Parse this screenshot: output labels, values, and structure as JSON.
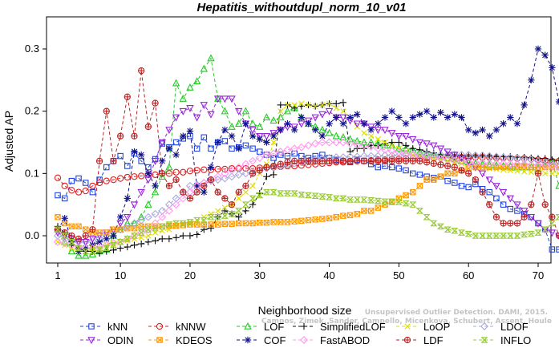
{
  "chart_data": {
    "type": "line",
    "title": "Hepatitis_withoutdupl_norm_10_v01",
    "xlabel": "Neighborhood size",
    "ylabel": "Adjusted AP",
    "xlim": [
      1,
      73
    ],
    "ylim": [
      -0.04,
      0.33
    ],
    "xticks": [
      1,
      10,
      20,
      30,
      40,
      50,
      60,
      70
    ],
    "yticks": [
      0.0,
      0.1,
      0.2,
      0.3
    ],
    "ytick_labels": [
      "0.0",
      "0.1",
      "0.2",
      "0.3"
    ],
    "grid": false,
    "legend_position": "bottom",
    "x": [
      1,
      2,
      3,
      4,
      5,
      6,
      7,
      8,
      9,
      10,
      11,
      12,
      13,
      14,
      15,
      16,
      17,
      18,
      19,
      20,
      21,
      22,
      23,
      24,
      25,
      26,
      27,
      28,
      29,
      30,
      31,
      32,
      33,
      34,
      35,
      36,
      37,
      38,
      39,
      40,
      41,
      42,
      43,
      44,
      45,
      46,
      47,
      48,
      49,
      50,
      51,
      52,
      53,
      54,
      55,
      56,
      57,
      58,
      59,
      60,
      61,
      62,
      63,
      64,
      65,
      66,
      67,
      68,
      69,
      70,
      71,
      72,
      73
    ],
    "series": [
      {
        "name": "kNN",
        "color": "#2244dd",
        "marker": "square",
        "values": [
          0.065,
          0.06,
          0.088,
          0.092,
          0.085,
          0.07,
          0.09,
          0.11,
          0.12,
          0.128,
          0.112,
          0.132,
          0.12,
          0.11,
          0.123,
          0.148,
          0.142,
          0.15,
          0.156,
          0.16,
          0.14,
          0.158,
          0.14,
          0.15,
          0.152,
          0.14,
          0.142,
          0.145,
          0.14,
          0.135,
          0.13,
          0.125,
          0.13,
          0.128,
          0.132,
          0.128,
          0.125,
          0.128,
          0.13,
          0.125,
          0.122,
          0.12,
          0.118,
          0.122,
          0.12,
          0.115,
          0.11,
          0.112,
          0.11,
          0.108,
          0.105,
          0.1,
          0.098,
          0.095,
          0.093,
          0.095,
          0.088,
          0.085,
          0.08,
          0.078,
          0.083,
          0.075,
          0.07,
          0.06,
          0.05,
          0.043,
          0.04,
          0.035,
          0.03,
          0.02,
          0.01,
          -0.022,
          -0.022
        ]
      },
      {
        "name": "kNNW",
        "color": "#dd2222",
        "marker": "circle",
        "values": [
          0.093,
          0.08,
          0.073,
          0.07,
          0.072,
          0.08,
          0.085,
          0.088,
          0.09,
          0.092,
          0.094,
          0.095,
          0.096,
          0.098,
          0.098,
          0.1,
          0.1,
          0.102,
          0.102,
          0.104,
          0.105,
          0.106,
          0.106,
          0.107,
          0.107,
          0.108,
          0.108,
          0.108,
          0.108,
          0.109,
          0.11,
          0.11,
          0.111,
          0.112,
          0.112,
          0.113,
          0.114,
          0.115,
          0.116,
          0.117,
          0.118,
          0.118,
          0.119,
          0.12,
          0.12,
          0.121,
          0.122,
          0.122,
          0.123,
          0.123,
          0.124,
          0.124,
          0.124,
          0.125,
          0.125,
          0.125,
          0.125,
          0.126,
          0.126,
          0.126,
          0.126,
          0.126,
          0.126,
          0.125,
          0.125,
          0.125,
          0.124,
          0.124,
          0.123,
          0.122,
          0.121,
          0.12,
          0.12
        ]
      },
      {
        "name": "LOF",
        "color": "#22cc22",
        "marker": "triangle",
        "values": [
          0.01,
          -0.01,
          -0.025,
          -0.032,
          -0.032,
          -0.03,
          -0.025,
          -0.022,
          0.0,
          0.01,
          0.02,
          0.02,
          0.03,
          0.05,
          0.07,
          0.095,
          0.11,
          0.245,
          0.22,
          0.238,
          0.248,
          0.268,
          0.285,
          0.22,
          0.2,
          0.175,
          0.18,
          0.2,
          0.18,
          0.175,
          0.19,
          0.185,
          0.19,
          0.2,
          0.205,
          0.19,
          0.18,
          0.175,
          0.17,
          0.165,
          0.16,
          0.158,
          0.155,
          0.152,
          0.15,
          0.15,
          0.148,
          0.145,
          0.145,
          0.14,
          0.14,
          0.138,
          0.135,
          0.132,
          0.13,
          0.128,
          0.125,
          0.123,
          0.12,
          0.118,
          0.116,
          0.115,
          0.114,
          0.113,
          0.112,
          0.112,
          0.11,
          0.11,
          0.11,
          0.108,
          0.115,
          0.12,
          0.08
        ]
      },
      {
        "name": "SimplifiedLOF",
        "color": "#111111",
        "marker": "plus",
        "values": [
          0.015,
          0.005,
          -0.015,
          -0.02,
          -0.025,
          -0.025,
          -0.028,
          -0.025,
          -0.023,
          -0.02,
          -0.018,
          -0.015,
          -0.013,
          -0.01,
          -0.008,
          -0.005,
          -0.005,
          -0.003,
          0.0,
          0.0,
          0.002,
          0.01,
          0.012,
          0.03,
          0.04,
          0.035,
          0.03,
          0.04,
          0.05,
          0.068,
          0.095,
          0.098,
          0.21,
          0.21,
          0.205,
          0.208,
          0.21,
          0.208,
          0.21,
          0.212,
          0.212,
          0.214,
          0.135,
          0.14,
          0.14,
          0.145,
          0.145,
          0.148,
          0.15,
          0.15,
          0.145,
          0.14,
          0.138,
          0.135,
          0.133,
          0.13,
          0.13,
          0.128,
          0.128,
          0.128,
          0.128,
          0.128,
          0.128,
          0.127,
          0.127,
          0.127,
          0.126,
          0.126,
          0.125,
          0.124,
          0.124,
          0.122,
          0.121
        ]
      },
      {
        "name": "LoOP",
        "color": "#dddd00",
        "marker": "cross",
        "values": [
          -0.01,
          -0.015,
          -0.02,
          -0.025,
          -0.025,
          -0.02,
          -0.02,
          -0.015,
          -0.012,
          -0.01,
          -0.008,
          -0.005,
          -0.003,
          0.0,
          0.005,
          0.008,
          0.01,
          0.015,
          0.018,
          0.02,
          0.025,
          0.03,
          0.035,
          0.04,
          0.045,
          0.05,
          0.06,
          0.07,
          0.08,
          0.1,
          0.115,
          0.15,
          0.2,
          0.21,
          0.21,
          0.212,
          0.21,
          0.208,
          0.21,
          0.212,
          0.205,
          0.2,
          0.19,
          0.175,
          0.165,
          0.16,
          0.155,
          0.15,
          0.145,
          0.14,
          0.135,
          0.13,
          0.128,
          0.125,
          0.123,
          0.121,
          0.12,
          0.118,
          0.116,
          0.114,
          0.112,
          0.11,
          0.108,
          0.107,
          0.106,
          0.105,
          0.104,
          0.103,
          0.102,
          0.101,
          0.1,
          0.1,
          0.1
        ]
      },
      {
        "name": "LDOF",
        "color": "#aaaadd",
        "marker": "diamond",
        "values": [
          0.0,
          -0.005,
          -0.008,
          -0.01,
          -0.01,
          -0.008,
          -0.005,
          0.0,
          0.005,
          0.01,
          0.015,
          0.02,
          0.025,
          0.03,
          0.035,
          0.04,
          0.05,
          0.06,
          0.07,
          0.08,
          0.082,
          0.085,
          0.088,
          0.09,
          0.092,
          0.095,
          0.098,
          0.1,
          0.102,
          0.105,
          0.108,
          0.11,
          0.112,
          0.114,
          0.116,
          0.118,
          0.12,
          0.122,
          0.124,
          0.125,
          0.126,
          0.126,
          0.127,
          0.127,
          0.128,
          0.128,
          0.128,
          0.129,
          0.129,
          0.129,
          0.13,
          0.13,
          0.13,
          0.13,
          0.13,
          0.13,
          0.13,
          0.13,
          0.13,
          0.13,
          0.129,
          0.129,
          0.128,
          0.127,
          0.126,
          0.125,
          0.124,
          0.123,
          0.122,
          0.12,
          0.118,
          0.115,
          0.112
        ]
      },
      {
        "name": "ODIN",
        "color": "#9922dd",
        "marker": "triangle-down",
        "values": [
          0.005,
          0.0,
          -0.005,
          -0.01,
          -0.01,
          -0.005,
          0.0,
          0.005,
          0.01,
          0.02,
          0.03,
          0.05,
          0.07,
          0.09,
          0.12,
          0.15,
          0.17,
          0.19,
          0.2,
          0.205,
          0.19,
          0.21,
          0.195,
          0.22,
          0.22,
          0.22,
          0.2,
          0.18,
          0.17,
          0.16,
          0.16,
          0.165,
          0.17,
          0.175,
          0.175,
          0.18,
          0.185,
          0.19,
          0.195,
          0.2,
          0.19,
          0.19,
          0.185,
          0.18,
          0.18,
          0.175,
          0.17,
          0.17,
          0.165,
          0.16,
          0.16,
          0.155,
          0.15,
          0.148,
          0.145,
          0.14,
          0.135,
          0.13,
          0.125,
          0.12,
          0.11,
          0.1,
          0.09,
          0.08,
          0.07,
          0.06,
          0.05,
          0.04,
          0.03,
          0.02,
          0.01,
          0.005,
          0.0
        ]
      },
      {
        "name": "KDEOS",
        "color": "#ff9900",
        "marker": "square-x",
        "values": [
          0.03,
          0.02,
          0.015,
          0.015,
          0.01,
          0.005,
          0.005,
          0.005,
          0.01,
          0.01,
          0.012,
          0.012,
          0.015,
          0.015,
          0.015,
          0.015,
          0.016,
          0.016,
          0.017,
          0.018,
          0.018,
          0.018,
          0.018,
          0.018,
          0.019,
          0.019,
          0.02,
          0.02,
          0.02,
          0.021,
          0.021,
          0.022,
          0.022,
          0.022,
          0.023,
          0.024,
          0.025,
          0.026,
          0.027,
          0.028,
          0.03,
          0.032,
          0.033,
          0.035,
          0.04,
          0.04,
          0.045,
          0.05,
          0.055,
          0.06,
          0.065,
          0.07,
          0.08,
          0.09,
          0.09,
          0.095,
          0.1,
          0.1,
          0.105,
          0.108,
          0.11,
          0.11,
          0.11,
          0.11,
          0.11,
          0.11,
          0.112,
          0.112,
          0.11,
          0.11,
          0.11,
          0.11,
          0.11
        ]
      },
      {
        "name": "COF",
        "color": "#111188",
        "marker": "asterisk",
        "values": [
          0.01,
          0.028,
          -0.01,
          -0.025,
          -0.02,
          -0.015,
          -0.01,
          -0.005,
          0.0,
          0.03,
          0.06,
          0.135,
          0.13,
          0.1,
          0.08,
          0.12,
          0.14,
          0.13,
          0.16,
          0.168,
          0.08,
          0.07,
          0.11,
          0.15,
          0.17,
          0.16,
          0.14,
          0.18,
          0.16,
          0.155,
          0.15,
          0.16,
          0.17,
          0.18,
          0.17,
          0.19,
          0.18,
          0.17,
          0.16,
          0.18,
          0.19,
          0.18,
          0.19,
          0.195,
          0.18,
          0.17,
          0.18,
          0.19,
          0.2,
          0.19,
          0.18,
          0.19,
          0.195,
          0.2,
          0.19,
          0.198,
          0.19,
          0.195,
          0.19,
          0.17,
          0.165,
          0.17,
          0.16,
          0.17,
          0.18,
          0.19,
          0.18,
          0.21,
          0.25,
          0.3,
          0.29,
          0.27,
          0.215
        ]
      },
      {
        "name": "FastABOD",
        "color": "#ff99ee",
        "marker": "diamond",
        "values": [
          -0.01,
          -0.012,
          -0.015,
          -0.018,
          -0.02,
          -0.02,
          -0.018,
          -0.015,
          -0.012,
          -0.01,
          -0.005,
          0.0,
          0.005,
          0.01,
          0.02,
          0.03,
          0.04,
          0.05,
          0.06,
          0.07,
          0.08,
          0.085,
          0.09,
          0.095,
          0.1,
          0.105,
          0.11,
          0.115,
          0.12,
          0.125,
          0.13,
          0.132,
          0.135,
          0.138,
          0.14,
          0.142,
          0.145,
          0.148,
          0.15,
          0.15,
          0.15,
          0.15,
          0.148,
          0.146,
          0.145,
          0.143,
          0.14,
          0.138,
          0.136,
          0.134,
          0.132,
          0.13,
          0.128,
          0.126,
          0.125,
          0.124,
          0.122,
          0.12,
          0.12,
          0.118,
          0.118,
          0.117,
          0.116,
          0.116,
          0.116,
          0.115,
          0.115,
          0.115,
          0.114,
          0.114,
          0.113,
          0.112,
          0.11
        ]
      },
      {
        "name": "LDF",
        "color": "#bb2222",
        "marker": "circle-plus",
        "values": [
          0.01,
          0.005,
          0.0,
          -0.005,
          0.0,
          0.01,
          0.12,
          0.2,
          0.12,
          0.16,
          0.223,
          0.16,
          0.265,
          0.175,
          0.213,
          0.1,
          0.08,
          0.09,
          0.07,
          0.06,
          0.07,
          0.08,
          0.09,
          0.07,
          0.06,
          0.05,
          0.07,
          0.08,
          0.1,
          0.105,
          0.11,
          0.112,
          0.115,
          0.118,
          0.12,
          0.12,
          0.12,
          0.12,
          0.12,
          0.12,
          0.12,
          0.12,
          0.12,
          0.12,
          0.12,
          0.12,
          0.12,
          0.12,
          0.12,
          0.12,
          0.12,
          0.12,
          0.12,
          0.118,
          0.116,
          0.114,
          0.112,
          0.11,
          0.105,
          0.1,
          0.09,
          0.07,
          0.05,
          0.03,
          0.02,
          0.02,
          0.02,
          0.03,
          0.05,
          0.1,
          0.05,
          0.03,
          0.0
        ]
      },
      {
        "name": "INFLO",
        "color": "#99cc33",
        "marker": "hourglass",
        "values": [
          0.01,
          0.0,
          -0.01,
          -0.02,
          -0.025,
          -0.025,
          -0.022,
          -0.02,
          -0.015,
          -0.01,
          -0.005,
          0.0,
          0.005,
          0.01,
          0.012,
          0.015,
          0.018,
          0.02,
          0.02,
          0.022,
          0.025,
          0.025,
          0.03,
          0.03,
          0.032,
          0.035,
          0.04,
          0.05,
          0.06,
          0.065,
          0.07,
          0.07,
          0.068,
          0.068,
          0.068,
          0.066,
          0.065,
          0.064,
          0.063,
          0.062,
          0.06,
          0.06,
          0.058,
          0.058,
          0.058,
          0.057,
          0.056,
          0.055,
          0.054,
          0.054,
          0.052,
          0.05,
          0.04,
          0.03,
          0.02,
          0.015,
          0.01,
          0.008,
          0.005,
          0.003,
          0.0,
          0.0,
          0.0,
          0.0,
          0.0,
          0.0,
          0.0,
          0.002,
          0.003,
          0.005,
          0.01,
          0.02,
          0.03
        ]
      }
    ],
    "legend_rows": [
      [
        "kNN",
        "kNNW",
        "LOF",
        "SimplifiedLOF",
        "LoOP",
        "LDOF"
      ],
      [
        "ODIN",
        "KDEOS",
        "COF",
        "FastABOD",
        "LDF",
        "INFLO"
      ]
    ],
    "watermark": [
      "Unsupervised Outlier Detection. DAMI, 2015.",
      "Campos, Zimek, Sander, Campello, Micenkova, Schubert, Assent, Houle"
    ]
  }
}
